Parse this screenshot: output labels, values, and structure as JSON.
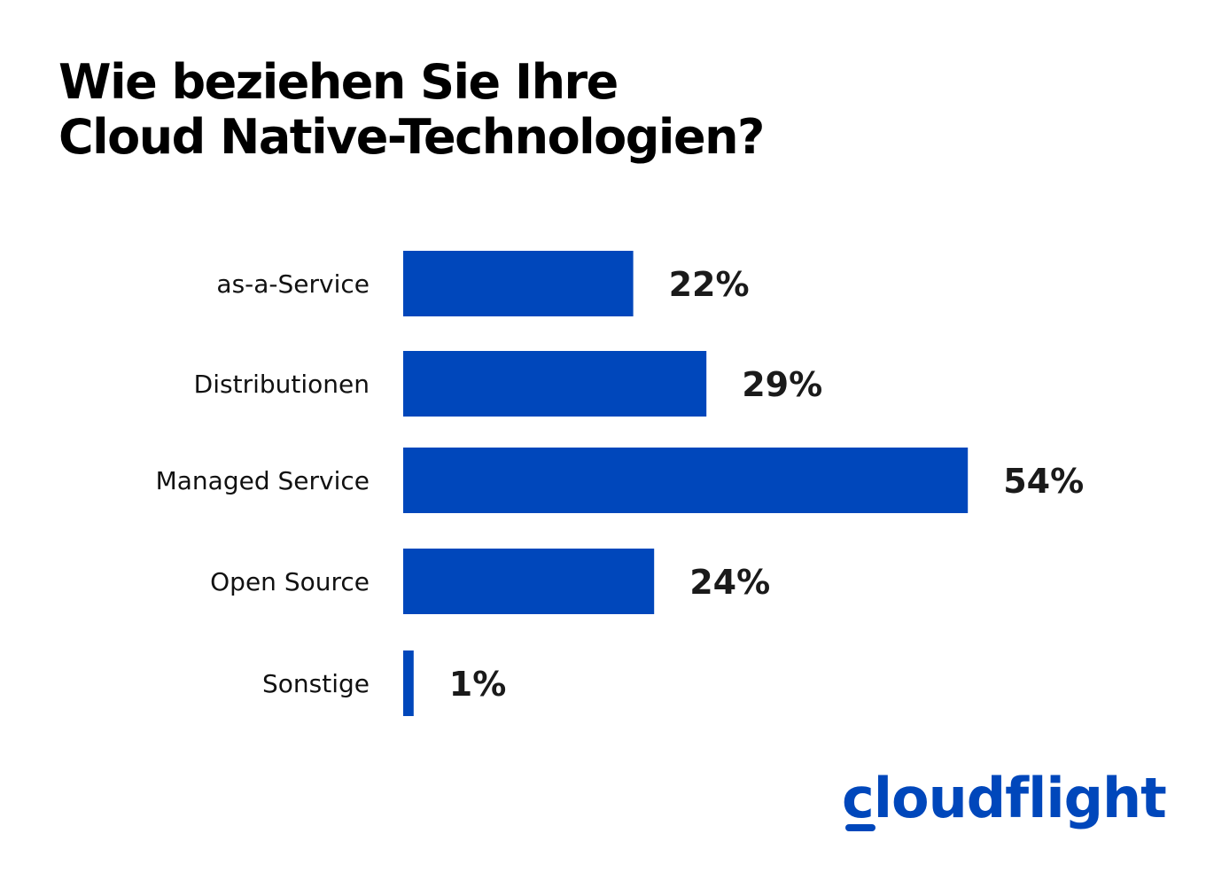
{
  "title": {
    "line1": "Wie beziehen Sie Ihre",
    "line2": "Cloud Native-Technologien?"
  },
  "logo": {
    "text": "cloudflight"
  },
  "colors": {
    "bar": "#0047bb",
    "label": "#111111",
    "value": "#1a1a1a",
    "brand": "#0047bb"
  },
  "chart_data": {
    "type": "bar",
    "orientation": "horizontal",
    "title": "Wie beziehen Sie Ihre Cloud Native-Technologien?",
    "categories": [
      "as-a-Service",
      "Distributionen",
      "Managed Service",
      "Open Source",
      "Sonstige"
    ],
    "values": [
      22,
      29,
      54,
      24,
      1
    ],
    "value_labels": [
      "22%",
      "29%",
      "54%",
      "24%",
      "1%"
    ],
    "unit": "%",
    "xlabel": "",
    "ylabel": "",
    "xlim": [
      0,
      60
    ],
    "grid": false,
    "legend": "none"
  }
}
